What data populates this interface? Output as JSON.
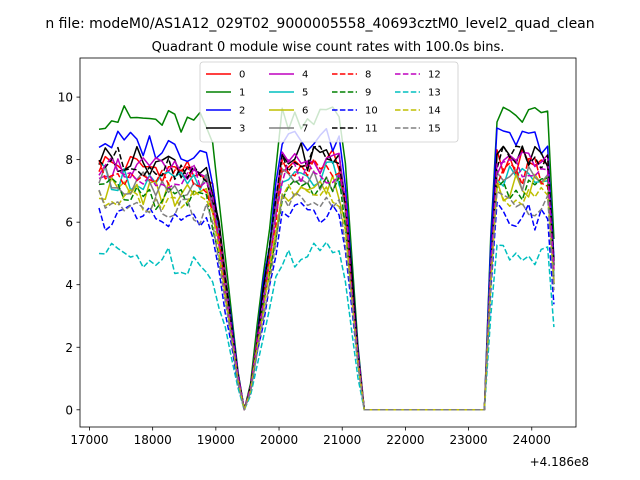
{
  "chart_data": {
    "type": "line",
    "suptitle": "n file: modeM0/AS1A12_029T02_9000005558_40693cztM0_level2_quad_clean",
    "title": "Quadrant 0 module wise count rates with 100.0s bins.",
    "xlabel": "",
    "ylabel": "",
    "x_offset_label": "+4.186e8",
    "xlim": [
      16850,
      24700
    ],
    "ylim": [
      -0.55,
      11.25
    ],
    "xticks": [
      17000,
      18000,
      19000,
      20000,
      21000,
      22000,
      23000,
      24000
    ],
    "yticks": [
      0,
      2,
      4,
      6,
      8,
      10
    ],
    "legend_position": "top-center",
    "x": [
      17150,
      17250,
      17350,
      17450,
      17550,
      17650,
      17750,
      17850,
      17950,
      18050,
      18150,
      18250,
      18350,
      18450,
      18550,
      18650,
      18750,
      18850,
      18950,
      19050,
      19150,
      19250,
      19350,
      19450,
      19550,
      19650,
      19750,
      19850,
      19950,
      20050,
      20150,
      20250,
      20350,
      20450,
      20550,
      20650,
      20750,
      20850,
      20950,
      21050,
      21150,
      21250,
      21350,
      21450,
      21550,
      21650,
      21750,
      21850,
      21950,
      22050,
      22150,
      22250,
      22350,
      22450,
      22550,
      22650,
      22750,
      22850,
      22950,
      23050,
      23150,
      23250,
      23350,
      23450,
      23550,
      23650,
      23750,
      23850,
      23950,
      24050,
      24150,
      24250,
      24350
    ],
    "series": [
      {
        "name": "0",
        "color": "#ff0000",
        "dash": "solid",
        "level": 7.9,
        "seed": 1
      },
      {
        "name": "1",
        "color": "#008000",
        "dash": "solid",
        "level": 9.4,
        "seed": 2
      },
      {
        "name": "2",
        "color": "#0000ff",
        "dash": "solid",
        "level": 8.6,
        "seed": 3
      },
      {
        "name": "3",
        "color": "#000000",
        "dash": "solid",
        "level": 8.1,
        "seed": 4
      },
      {
        "name": "4",
        "color": "#bf00bf",
        "dash": "solid",
        "level": 7.8,
        "seed": 5
      },
      {
        "name": "5",
        "color": "#00bfbf",
        "dash": "solid",
        "level": 7.5,
        "seed": 6
      },
      {
        "name": "6",
        "color": "#bfbf00",
        "dash": "solid",
        "level": 7.1,
        "seed": 7
      },
      {
        "name": "7",
        "color": "#808080",
        "dash": "solid",
        "level": 7.4,
        "seed": 8
      },
      {
        "name": "8",
        "color": "#ff0000",
        "dash": "dashed",
        "level": 7.6,
        "seed": 9
      },
      {
        "name": "9",
        "color": "#008000",
        "dash": "dashed",
        "level": 7.0,
        "seed": 10
      },
      {
        "name": "10",
        "color": "#0000ff",
        "dash": "dashed",
        "level": 6.2,
        "seed": 11
      },
      {
        "name": "11",
        "color": "#000000",
        "dash": "dashed",
        "level": 8.0,
        "seed": 12
      },
      {
        "name": "12",
        "color": "#bf00bf",
        "dash": "dashed",
        "level": 7.7,
        "seed": 13
      },
      {
        "name": "13",
        "color": "#00bfbf",
        "dash": "dashed",
        "level": 5.0,
        "seed": 14
      },
      {
        "name": "14",
        "color": "#bfbf00",
        "dash": "dashed",
        "level": 6.9,
        "seed": 15
      },
      {
        "name": "15",
        "color": "#808080",
        "dash": "dashed",
        "level": 6.6,
        "seed": 16
      }
    ]
  }
}
